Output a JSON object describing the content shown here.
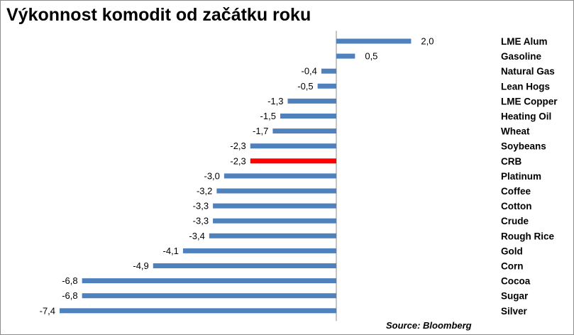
{
  "title": "Výkonnost komodit od začátku roku",
  "source": "Source: Bloomberg",
  "colors": {
    "bar": "#4f81bd",
    "highlight": "#ff0000",
    "axis": "#8c8c8c"
  },
  "chart_data": {
    "type": "bar",
    "orientation": "horizontal",
    "categories": [
      "LME Alum",
      "Gasoline",
      "Natural Gas",
      "Lean Hogs",
      "LME Copper",
      "Heating Oil",
      "Wheat",
      "Soybeans",
      "CRB",
      "Platinum",
      "Coffee",
      "Cotton",
      "Crude",
      "Rough Rice",
      "Gold",
      "Corn",
      "Cocoa",
      "Sugar",
      "Silver"
    ],
    "values": [
      2.0,
      0.5,
      -0.4,
      -0.5,
      -1.3,
      -1.5,
      -1.7,
      -2.3,
      -2.3,
      -3.0,
      -3.2,
      -3.3,
      -3.3,
      -3.4,
      -4.1,
      -4.9,
      -6.8,
      -6.8,
      -7.4
    ],
    "value_labels": [
      "2,0",
      "0,5",
      "-0,4",
      "-0,5",
      "-1,3",
      "-1,5",
      "-1,7",
      "-2,3",
      "-2,3",
      "-3,0",
      "-3,2",
      "-3,3",
      "-3,3",
      "-3,4",
      "-4,1",
      "-4,9",
      "-6,8",
      "-6,8",
      "-7,4"
    ],
    "highlight_category": "CRB",
    "grid": false,
    "legend": "none"
  }
}
